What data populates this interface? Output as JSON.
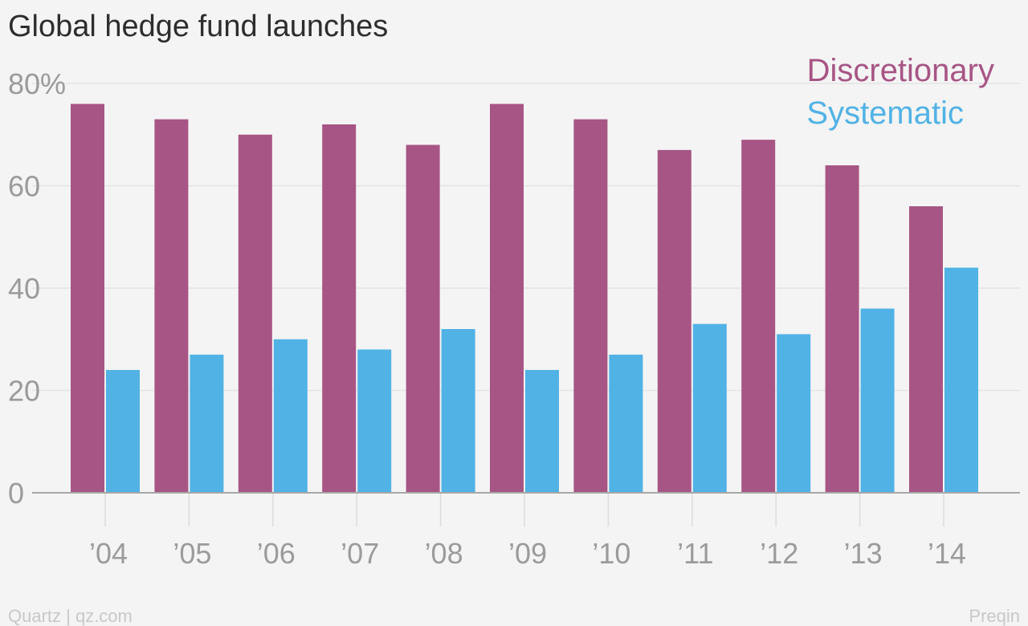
{
  "chart_data": {
    "type": "bar",
    "title": "Global hedge fund launches",
    "categories": [
      "’04",
      "’05",
      "’06",
      "’07",
      "’08",
      "’09",
      "’10",
      "’11",
      "’12",
      "’13",
      "’14"
    ],
    "series": [
      {
        "name": "Discretionary",
        "color": "#a75585",
        "values": [
          76,
          73,
          70,
          72,
          68,
          76,
          73,
          67,
          69,
          64,
          56
        ]
      },
      {
        "name": "Systematic",
        "color": "#51b2e5",
        "values": [
          24,
          27,
          30,
          28,
          32,
          24,
          27,
          33,
          31,
          36,
          44
        ]
      }
    ],
    "yticks": [
      "0",
      "20",
      "40",
      "60",
      "80%"
    ],
    "ylim": [
      0,
      80
    ],
    "grid": true,
    "legend_position": "top-right",
    "source_left": "Quartz | qz.com",
    "source_right": "Preqin"
  }
}
